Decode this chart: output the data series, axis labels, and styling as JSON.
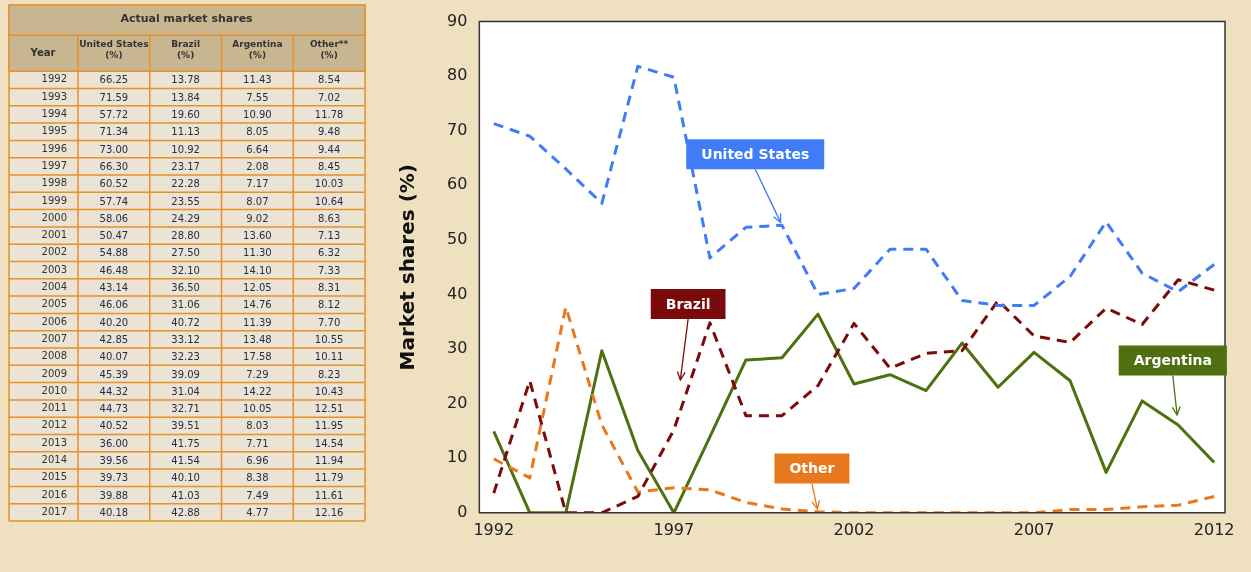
{
  "chart_data": [
    {
      "type": "heatmap",
      "title": "Actual market shares",
      "ylabel": "Year",
      "categories": [
        "United States (%)",
        "Brazil (%)",
        "Argentina (%)",
        "Other** (%)"
      ],
      "y_categories": [
        "1992",
        "1993",
        "1994",
        "1995",
        "1996",
        "1997",
        "1998",
        "1999",
        "2000",
        "2001",
        "2002",
        "2003",
        "2004",
        "2005",
        "2006",
        "2007",
        "2008",
        "2009",
        "2010",
        "2011",
        "2012",
        "2013",
        "2014",
        "2015",
        "2016",
        "2017"
      ],
      "cells": [
        [
          66.25,
          13.78,
          11.43,
          8.54
        ],
        [
          71.59,
          13.84,
          7.55,
          7.02
        ],
        [
          57.72,
          19.6,
          10.9,
          11.78
        ],
        [
          71.34,
          11.13,
          8.05,
          9.48
        ],
        [
          73.0,
          10.92,
          6.64,
          9.44
        ],
        [
          66.3,
          23.17,
          2.08,
          8.45
        ],
        [
          60.52,
          22.28,
          7.17,
          10.03
        ],
        [
          57.74,
          23.55,
          8.07,
          10.64
        ],
        [
          58.06,
          24.29,
          9.02,
          8.63
        ],
        [
          50.47,
          28.8,
          13.6,
          7.13
        ],
        [
          54.88,
          27.5,
          11.3,
          6.32
        ],
        [
          46.48,
          32.1,
          14.1,
          7.33
        ],
        [
          43.14,
          36.5,
          12.05,
          8.31
        ],
        [
          46.06,
          31.06,
          14.76,
          8.12
        ],
        [
          40.2,
          40.72,
          11.39,
          7.7
        ],
        [
          42.85,
          33.12,
          13.48,
          10.55
        ],
        [
          40.07,
          32.23,
          17.58,
          10.11
        ],
        [
          45.39,
          39.09,
          7.29,
          8.23
        ],
        [
          44.32,
          31.04,
          14.22,
          10.43
        ],
        [
          44.73,
          32.71,
          10.05,
          12.51
        ],
        [
          40.52,
          39.51,
          8.03,
          11.95
        ],
        [
          36.0,
          41.75,
          7.71,
          14.54
        ],
        [
          39.56,
          41.54,
          6.96,
          11.94
        ],
        [
          39.73,
          40.1,
          8.38,
          11.79
        ],
        [
          39.88,
          41.03,
          7.49,
          11.61
        ],
        [
          40.18,
          42.88,
          4.77,
          12.16
        ]
      ],
      "cell_labels": [
        [
          "66.25",
          "13.78",
          "11.43",
          "8.54"
        ],
        [
          "71.59",
          "13.84",
          "7.55",
          "7.02"
        ],
        [
          "57.72",
          "19.60",
          "10.90",
          "11.78"
        ],
        [
          "71.34",
          "11.13",
          "8.05",
          "9.48"
        ],
        [
          "73.00",
          "10.92",
          "6.64",
          "9.44"
        ],
        [
          "66.30",
          "23.17",
          "2.08",
          "8.45"
        ],
        [
          "60.52",
          "22.28",
          "7.17",
          "10.03"
        ],
        [
          "57.74",
          "23.55",
          "8.07",
          "10.64"
        ],
        [
          "58.06",
          "24.29",
          "9.02",
          "8.63"
        ],
        [
          "50.47",
          "28.80",
          "13.60",
          "7.13"
        ],
        [
          "54.88",
          "27.50",
          "11.30",
          "6.32"
        ],
        [
          "46.48",
          "32.10",
          "14.10",
          "7.33"
        ],
        [
          "43.14",
          "36.50",
          "12.05",
          "8.31"
        ],
        [
          "46.06",
          "31.06",
          "14.76",
          "8.12"
        ],
        [
          "40.20",
          "40.72",
          "11.39",
          "7.70"
        ],
        [
          "42.85",
          "33.12",
          "13.48",
          "10.55"
        ],
        [
          "40.07",
          "32.23",
          "17.58",
          "10.11"
        ],
        [
          "45.39",
          "39.09",
          "7.29",
          "8.23"
        ],
        [
          "44.32",
          "31.04",
          "14.22",
          "10.43"
        ],
        [
          "44.73",
          "32.71",
          "10.05",
          "12.51"
        ],
        [
          "40.52",
          "39.51",
          "8.03",
          "11.95"
        ],
        [
          "36.00",
          "41.75",
          "7.71",
          "14.54"
        ],
        [
          "39.56",
          "41.54",
          "6.96",
          "11.94"
        ],
        [
          "39.73",
          "40.10",
          "8.38",
          "11.79"
        ],
        [
          "39.88",
          "41.03",
          "7.49",
          "11.61"
        ],
        [
          "40.18",
          "42.88",
          "4.77",
          "12.16"
        ]
      ]
    },
    {
      "type": "line",
      "ylabel": "Market shares (%)",
      "x": [
        1992,
        1993,
        1994,
        1995,
        1996,
        1997,
        1998,
        1999,
        2000,
        2001,
        2002,
        2003,
        2004,
        2005,
        2006,
        2007,
        2008,
        2009,
        2010,
        2011,
        2012
      ],
      "series": [
        {
          "name": "United States",
          "color": "#3f7cf5",
          "line_style": "dashed",
          "values": [
            71.3,
            69,
            63,
            56.7,
            81.8,
            79.8,
            46.7,
            52.3,
            52.7,
            40,
            41.1,
            48.3,
            48.3,
            38.9,
            38,
            38,
            43.3,
            53.3,
            43.9,
            40.5,
            45.5
          ]
        },
        {
          "name": "Brazil",
          "color": "#7b0a0a",
          "line_style": "dashed",
          "values": [
            3.6,
            24.2,
            0,
            0,
            3,
            15.2,
            34.8,
            17.8,
            17.8,
            23.3,
            34.7,
            26.5,
            29.2,
            29.7,
            38.9,
            32.4,
            31.2,
            37.5,
            34.5,
            42.7,
            40.8
          ]
        },
        {
          "name": "Other",
          "color": "#e8781e",
          "line_style": "dashed",
          "values": [
            9.9,
            6.4,
            37.7,
            16.1,
            3.8,
            4.6,
            4.2,
            1.9,
            0.7,
            0.2,
            0,
            0,
            0,
            0,
            0,
            0,
            0.6,
            0.6,
            1.1,
            1.4,
            3
          ]
        },
        {
          "name": "Argentina",
          "color": "#4e7010",
          "line_style": "solid",
          "values": [
            14.9,
            0,
            0,
            29.7,
            11.4,
            0,
            13.9,
            28,
            28.4,
            36.4,
            23.6,
            25.3,
            22.4,
            31.1,
            23,
            29.4,
            24.2,
            7.4,
            20.5,
            16.1,
            9.2
          ]
        }
      ],
      "xlim": [
        1991.6,
        2012.3
      ],
      "xticks": [
        1992,
        1997,
        2002,
        2007,
        2012
      ],
      "ylim": [
        0,
        90
      ],
      "yticks": [
        0,
        10,
        20,
        30,
        40,
        50,
        60,
        70,
        80,
        90
      ],
      "grid": false,
      "legend": false,
      "marker": "none"
    }
  ]
}
